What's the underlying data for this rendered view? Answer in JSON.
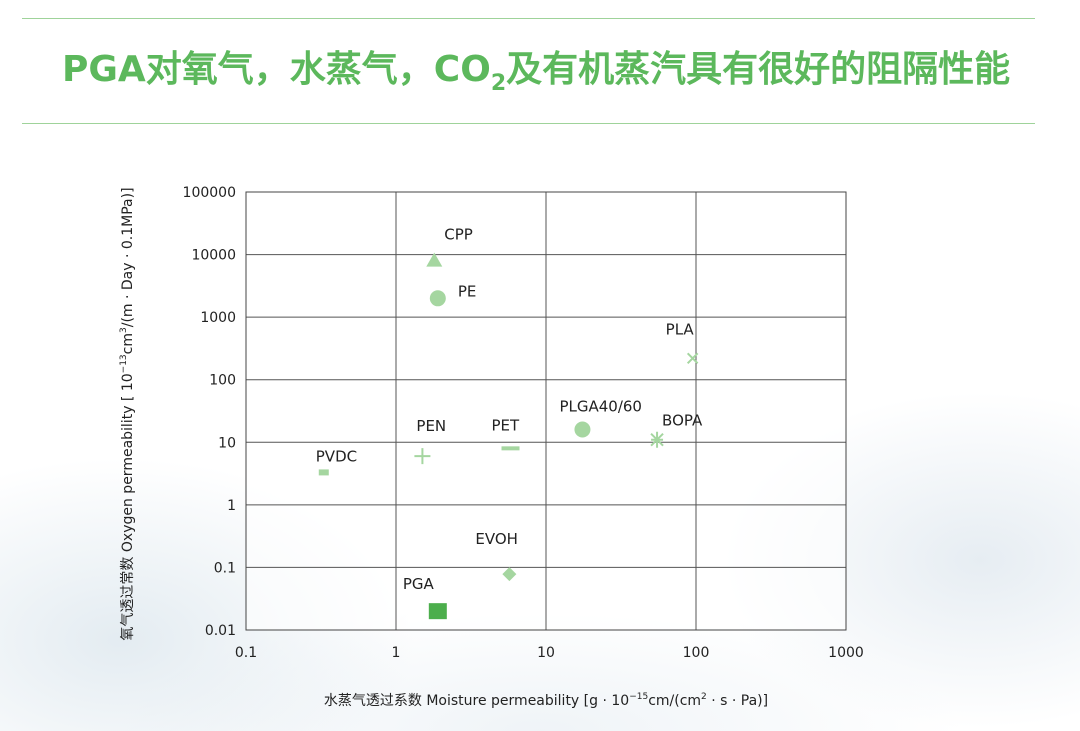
{
  "page": {
    "title_main": "PGA对氧气，水蒸气，CO",
    "title_sub": "2",
    "title_rest": "及有机蒸汽具有很好的阻隔性能",
    "accent_color": "#5cb85c",
    "marker_color": "#9fd39a"
  },
  "chart_data": {
    "type": "scatter",
    "xscale": "log",
    "yscale": "log",
    "xlim": [
      0.1,
      1000
    ],
    "ylim": [
      0.01,
      100000
    ],
    "grid": true,
    "x_ticks": [
      "0.1",
      "1",
      "10",
      "100",
      "1000"
    ],
    "y_ticks": [
      "0.01",
      "0.1",
      "1",
      "10",
      "100",
      "1000",
      "10000",
      "100000"
    ],
    "xlabel_cn": "水蒸气透过系数",
    "xlabel_en": "Moisture permeability [g · 10",
    "xlabel_exp": "−15",
    "xlabel_mid": "cm/(cm",
    "xlabel_exp2": "2",
    "xlabel_end": " · s · Pa)]",
    "ylabel_cn": "氧气透过常数",
    "ylabel_en": "Oxygen permeability [ 10",
    "ylabel_exp": "−13",
    "ylabel_mid": "cm",
    "ylabel_exp2": "3",
    "ylabel_end": "/(m · Day · 0.1MPa)]",
    "points": [
      {
        "label": "CPP",
        "x": 1.8,
        "y": 8000,
        "marker": "triangle",
        "color": "#a5d6a0"
      },
      {
        "label": "PE",
        "x": 1.9,
        "y": 2000,
        "marker": "circle",
        "color": "#a5d6a0"
      },
      {
        "label": "PLA",
        "x": 95,
        "y": 220,
        "marker": "x",
        "color": "#a5d6a0"
      },
      {
        "label": "PLGA40/60",
        "x": 17.5,
        "y": 16,
        "marker": "circle",
        "color": "#a5d6a0"
      },
      {
        "label": "BOPA",
        "x": 55,
        "y": 11,
        "marker": "star",
        "color": "#a5d6a0"
      },
      {
        "label": "PET",
        "x": 5.8,
        "y": 8,
        "marker": "dash",
        "color": "#a5d6a0"
      },
      {
        "label": "PEN",
        "x": 1.5,
        "y": 6,
        "marker": "plus",
        "color": "#a5d6a0"
      },
      {
        "label": "PVDC",
        "x": 0.33,
        "y": 3.3,
        "marker": "square-small",
        "color": "#a5d6a0"
      },
      {
        "label": "EVOH",
        "x": 5.7,
        "y": 0.078,
        "marker": "diamond",
        "color": "#a5d6a0"
      },
      {
        "label": "PGA",
        "x": 1.9,
        "y": 0.02,
        "marker": "square",
        "color": "#4cae4c"
      }
    ]
  }
}
